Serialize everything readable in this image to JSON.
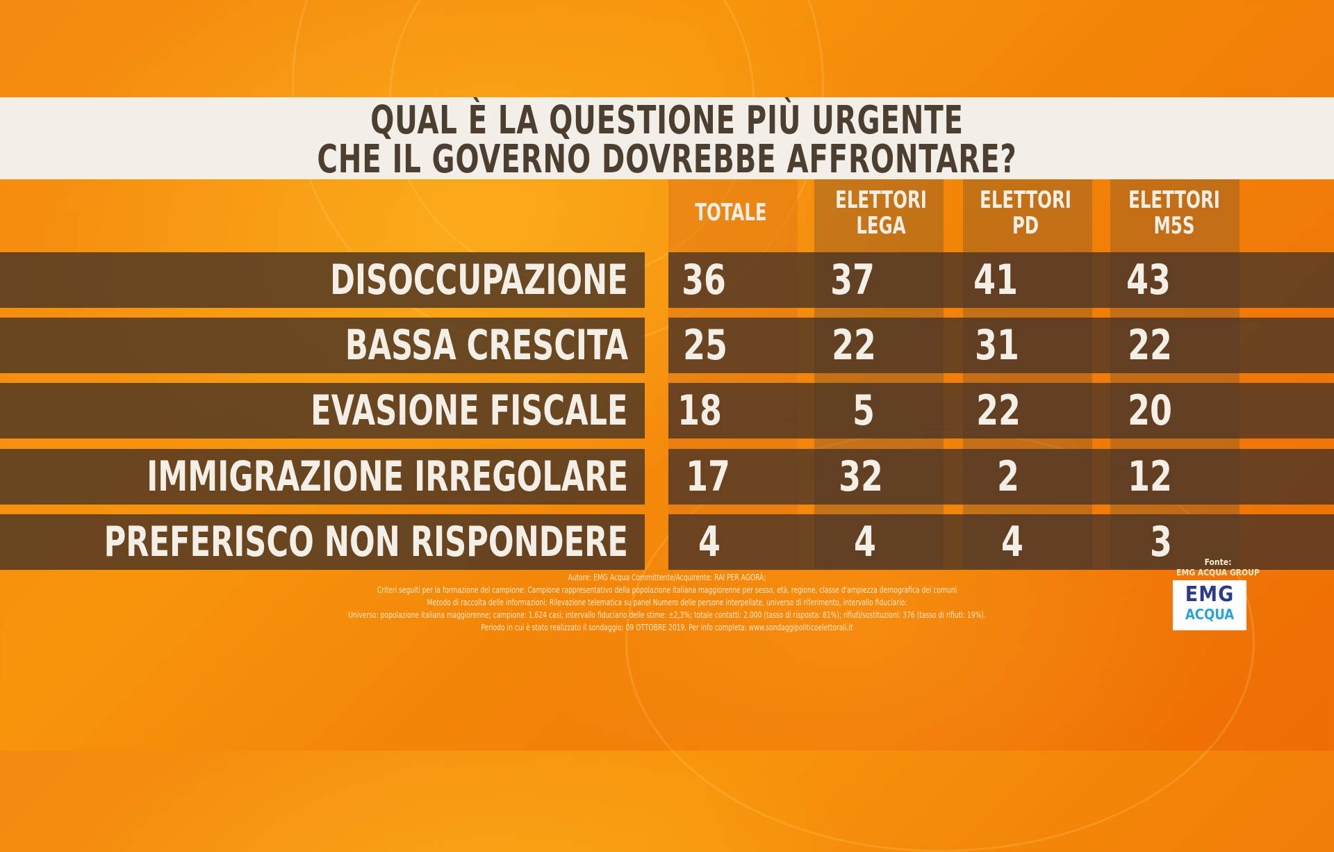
{
  "title": {
    "line1": "QUAL È LA QUESTIONE PIÙ URGENTE",
    "line2": "CHE IL GOVERNO DOVREBBE AFFRONTARE?"
  },
  "chart_data": {
    "type": "table",
    "columns": [
      {
        "line1": "TOTALE",
        "line2": ""
      },
      {
        "line1": "ELETTORI",
        "line2": "LEGA"
      },
      {
        "line1": "ELETTORI",
        "line2": "PD"
      },
      {
        "line1": "ELETTORI",
        "line2": "M5S"
      }
    ],
    "rows": [
      {
        "label": "DISOCCUPAZIONE",
        "values": [
          "36",
          "37",
          "41",
          "43"
        ]
      },
      {
        "label": "BASSA CRESCITA",
        "values": [
          "25",
          "22",
          "31",
          "22"
        ]
      },
      {
        "label": "EVASIONE FISCALE",
        "values": [
          "18",
          "5",
          "22",
          "20"
        ]
      },
      {
        "label": "IMMIGRAZIONE IRREGOLARE",
        "values": [
          "17",
          "32",
          "2",
          "12"
        ]
      },
      {
        "label": "PREFERISCO NON RISPONDERE",
        "values": [
          "4",
          "4",
          "4",
          "3"
        ]
      }
    ]
  },
  "notes": [
    "Autore: EMG Acqua Committente/Acquirente: RAI PER AGORÀ;",
    "Criteri seguiti per la formazione del campione: Campione rappresentativo della popolazione italiana maggiorenne per sesso, età, regione, classe d'ampiezza demografica dei comuni",
    "Metodo di raccolta delle informazioni: Rilevazione telematica su panel Numero delle persone interpellate, universo di riferimento, intervallo fiduciario:",
    "Universo: popolazione italiana maggiorenne; campione: 1.624 casi; intervallo fiduciario delle stime: ±2,3%; totale contatti: 2.000 (tasso di risposta: 81%); rifiuti/sostituzioni: 376 (tasso di rifiuti: 19%).",
    "Periodo in cui è stato realizzato il sondaggio: 09 OTTOBRE 2019. Per info completa: www.sondaggipoliticoelettorali.it"
  ],
  "source": {
    "label": "Fonte:",
    "name": "EMG ACQUA GROUP",
    "logo_text": "EMG",
    "logo_sub": "ACQUA"
  }
}
